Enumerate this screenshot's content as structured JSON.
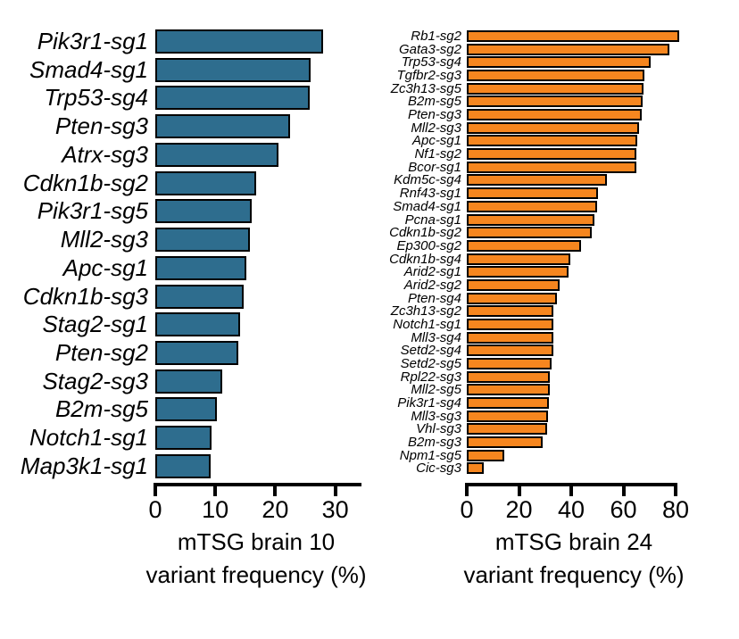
{
  "figure": {
    "background": "#ffffff",
    "text_color": "#000000"
  },
  "chart_data": [
    {
      "type": "bar",
      "orientation": "horizontal",
      "title": "mTSG brain 10 variant frequency (%)",
      "xlabel_lines": [
        "mTSG brain 10",
        "variant frequency (%)"
      ],
      "bar_color": "#2E6D8E",
      "bar_outline": "#000000",
      "grid": false,
      "xlim": [
        0,
        34.5
      ],
      "xticks": [
        0,
        10,
        20,
        30
      ],
      "categories": [
        "Pik3r1-sg1",
        "Smad4-sg1",
        "Trp53-sg4",
        "Pten-sg3",
        "Atrx-sg3",
        "Cdkn1b-sg2",
        "Pik3r1-sg5",
        "Mll2-sg3",
        "Apc-sg1",
        "Cdkn1b-sg3",
        "Stag2-sg1",
        "Pten-sg2",
        "Stag2-sg3",
        "B2m-sg5",
        "Notch1-sg1",
        "Map3k1-sg1"
      ],
      "values": [
        28.0,
        25.9,
        25.7,
        22.5,
        20.6,
        16.8,
        16.1,
        15.8,
        15.1,
        14.7,
        14.2,
        13.8,
        11.1,
        10.3,
        9.4,
        9.2
      ]
    },
    {
      "type": "bar",
      "orientation": "horizontal",
      "title": "mTSG brain 24 variant frequency (%)",
      "xlabel_lines": [
        "mTSG brain 24",
        "variant frequency (%)"
      ],
      "bar_color": "#F6861F",
      "bar_outline": "#000000",
      "grid": false,
      "xlim": [
        0,
        80
      ],
      "xticks": [
        0,
        20,
        40,
        60,
        80
      ],
      "categories": [
        "Rb1-sg2",
        "Gata3-sg2",
        "Trp53-sg4",
        "Tgfbr2-sg3",
        "Zc3h13-sg5",
        "B2m-sg5",
        "Pten-sg3",
        "Mll2-sg3",
        "Apc-sg1",
        "Nf1-sg2",
        "Bcor-sg1",
        "Kdm5c-sg4",
        "Rnf43-sg1",
        "Smad4-sg1",
        "Pcna-sg1",
        "Cdkn1b-sg2",
        "Ep300-sg2",
        "Cdkn1b-sg4",
        "Arid2-sg1",
        "Arid2-sg2",
        "Pten-sg4",
        "Zc3h13-sg2",
        "Notch1-sg1",
        "Mll3-sg4",
        "Setd2-sg4",
        "Setd2-sg5",
        "Rpl22-sg3",
        "Mll2-sg5",
        "Pik3r1-sg4",
        "Mll3-sg3",
        "Vhl-sg3",
        "B2m-sg3",
        "Npm1-sg5",
        "Cic-sg3"
      ],
      "values": [
        81.2,
        77.5,
        70.3,
        68.0,
        67.7,
        67.2,
        66.9,
        65.8,
        65.2,
        64.8,
        64.8,
        53.8,
        50.2,
        49.8,
        49.0,
        47.8,
        43.9,
        39.8,
        39.1,
        35.4,
        34.4,
        33.3,
        33.1,
        33.1,
        33.0,
        32.3,
        31.7,
        31.7,
        31.3,
        31.1,
        30.8,
        29.0,
        14.3,
        6.6
      ]
    }
  ]
}
